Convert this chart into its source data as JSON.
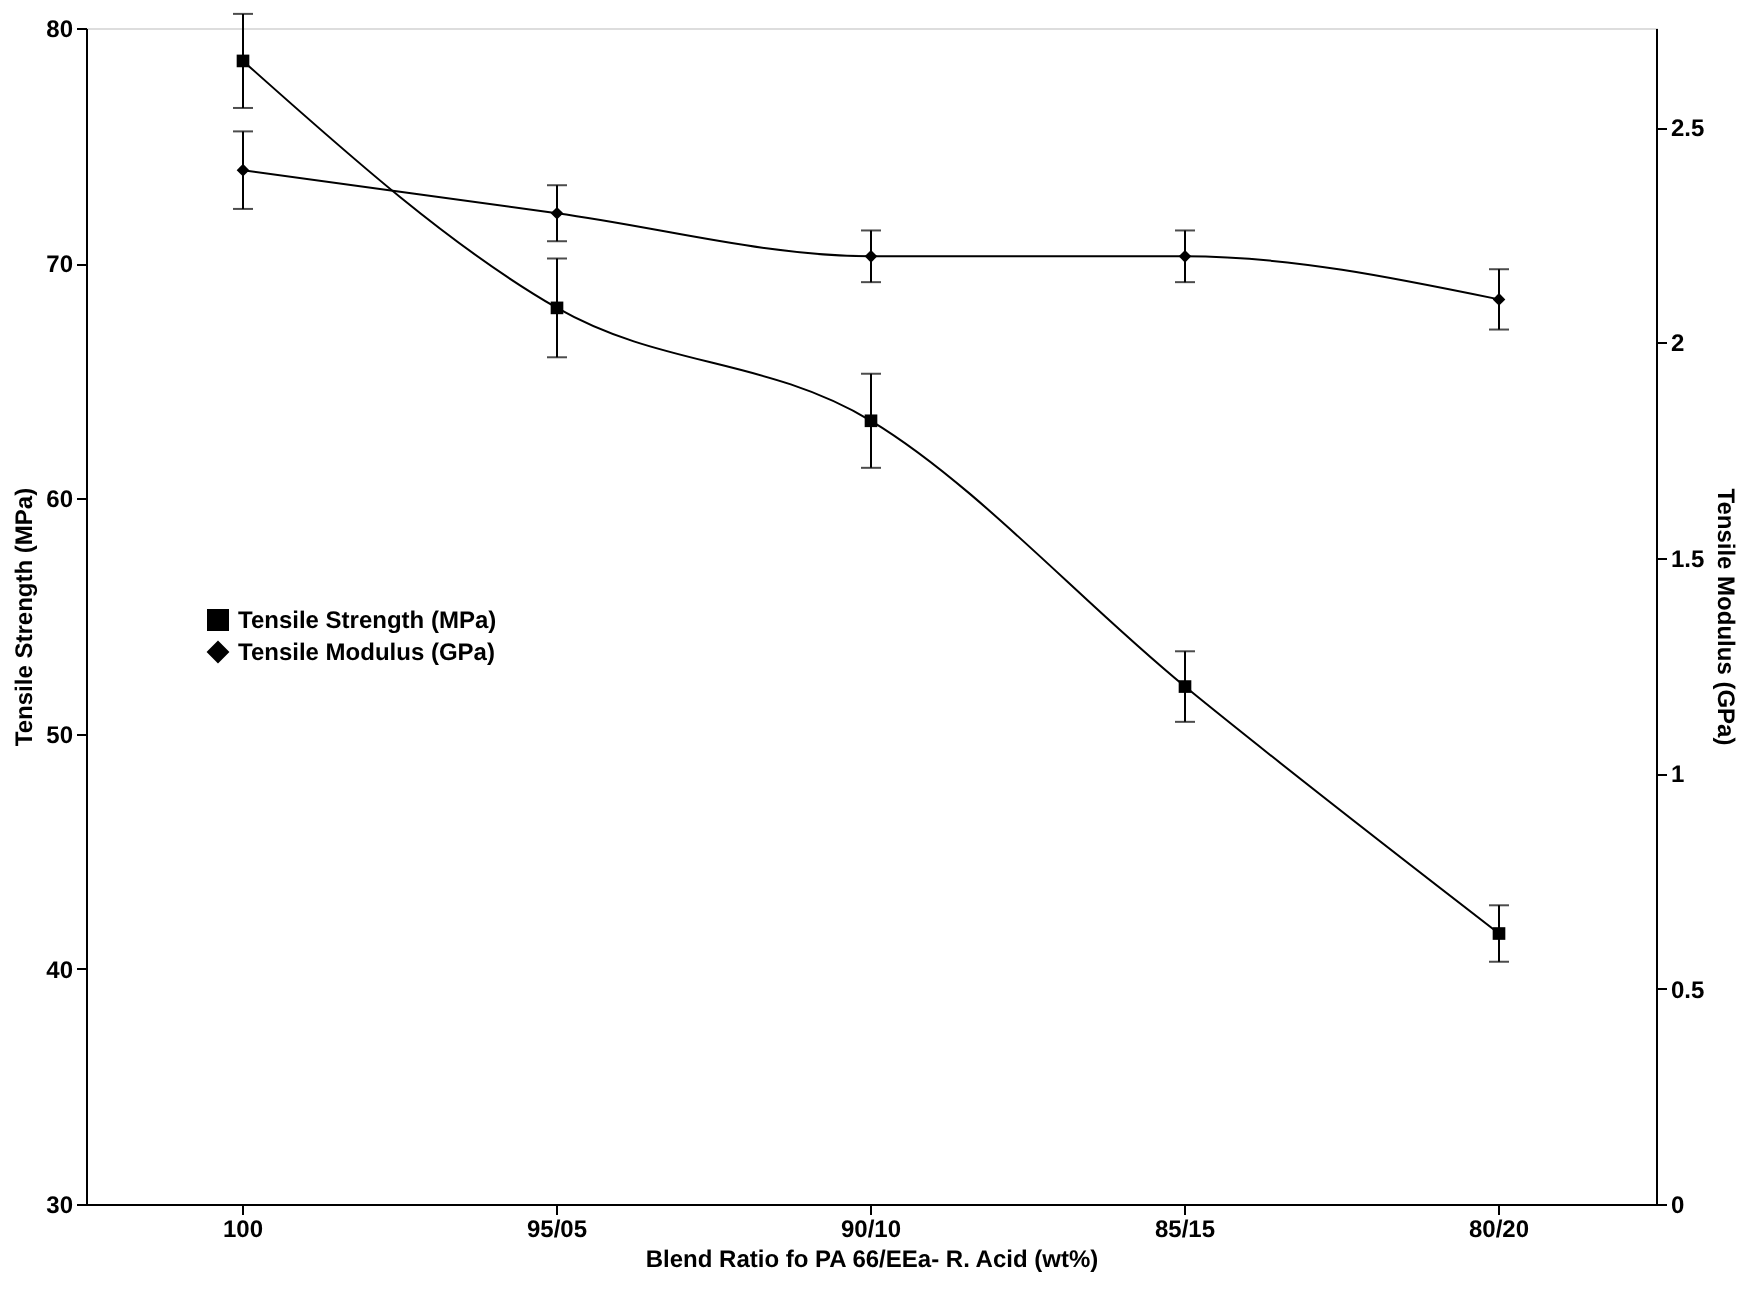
{
  "chart_data": {
    "type": "line",
    "xlabel": "Blend Ratio fo PA 66/EEa- R. Acid  (wt%)",
    "ylabel": "Tensile Strength (MPa)",
    "y2label": "Tensile Modulus (GPa)",
    "categories": [
      "100",
      "95/05",
      "90/10",
      "85/15",
      "80/20"
    ],
    "series": [
      {
        "name": "Tensile Strength (MPa)",
        "color": "#000000",
        "marker": "square",
        "values": [
          78.6,
          68.1,
          63.3,
          52.0,
          41.5
        ],
        "errors": [
          2,
          2.1,
          2,
          1.5,
          1.2
        ]
      },
      {
        "name": "Tensile Modulus (GPa)",
        "color": "#000000",
        "marker": "diamond",
        "axis": "y2",
        "values": [
          2.4,
          2.3,
          2.2,
          2.2,
          2.1
        ],
        "errors": [
          0.09,
          0.065,
          0.06,
          0.06,
          0.07
        ]
      }
    ],
    "ylim": [
      30,
      80
    ],
    "yticks": [
      30,
      40,
      50,
      60,
      70,
      80
    ],
    "y2lim": [
      0,
      2.73
    ],
    "y2ticks": [
      {
        "value": 0,
        "label": "0"
      },
      0.5,
      {
        "value": 1,
        "label": "1"
      },
      1.5,
      {
        "value": 2,
        "label": "2"
      },
      2.5
    ],
    "legend": "left",
    "grid": false,
    "line_style": "solid"
  }
}
